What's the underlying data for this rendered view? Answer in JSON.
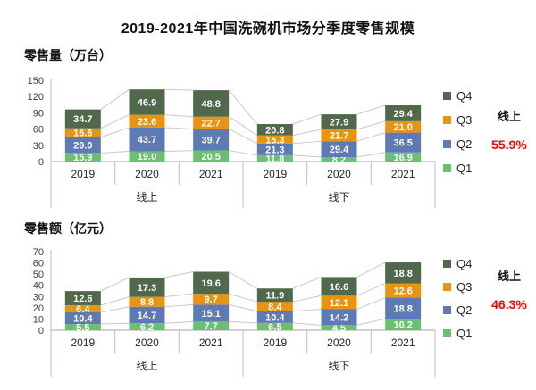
{
  "title": "2019-2021年中国洗碗机市场分季度零售规模",
  "colors": {
    "Q1": "#69c06d",
    "Q2": "#5d7ab5",
    "Q3": "#e89410",
    "Q4": "#4f694a",
    "connector": "#c9c9c9",
    "axis_line": "#bfbfbf",
    "baseline": "#a6a6a6",
    "tick_text": "#404040",
    "category_text": "#262626",
    "value_text": "#ffffff",
    "red": "#ff0000"
  },
  "chart_data": [
    {
      "type": "bar",
      "stacked": true,
      "section_label": "零售量（万台）",
      "unit": "万台",
      "y_max": 150,
      "y_ticks": [
        150,
        120,
        90,
        60,
        30,
        0
      ],
      "categories": [
        "2019",
        "2020",
        "2021",
        "2019",
        "2020",
        "2021"
      ],
      "group_labels": [
        "线上",
        "线下"
      ],
      "series": [
        {
          "name": "Q1",
          "values": [
            15.9,
            19.0,
            20.5,
            11.8,
            8.2,
            16.9
          ]
        },
        {
          "name": "Q2",
          "values": [
            29.0,
            43.7,
            39.7,
            21.3,
            29.4,
            36.5
          ]
        },
        {
          "name": "Q3",
          "values": [
            16.6,
            23.6,
            22.7,
            15.3,
            21.7,
            21.0
          ]
        },
        {
          "name": "Q4",
          "values": [
            34.7,
            46.9,
            48.8,
            20.8,
            27.9,
            29.4
          ]
        }
      ],
      "legend": [
        "Q4",
        "Q3",
        "Q2",
        "Q1"
      ],
      "annotation": {
        "label": "线上",
        "value": "55.9%"
      }
    },
    {
      "type": "bar",
      "stacked": true,
      "section_label": "零售额（亿元）",
      "unit": "亿元",
      "y_max": 70,
      "y_ticks": [
        70,
        60,
        50,
        40,
        30,
        20,
        10,
        0
      ],
      "categories": [
        "2019",
        "2020",
        "2021",
        "2019",
        "2020",
        "2021"
      ],
      "group_labels": [
        "线上",
        "线下"
      ],
      "series": [
        {
          "name": "Q1",
          "values": [
            5.5,
            6.2,
            7.7,
            6.5,
            4.5,
            10.2
          ]
        },
        {
          "name": "Q2",
          "values": [
            10.4,
            14.7,
            15.1,
            10.4,
            14.2,
            18.8
          ]
        },
        {
          "name": "Q3",
          "values": [
            6.4,
            8.8,
            9.7,
            8.4,
            12.1,
            12.6
          ]
        },
        {
          "name": "Q4",
          "values": [
            12.6,
            17.3,
            19.6,
            11.9,
            16.6,
            18.8
          ]
        }
      ],
      "legend": [
        "Q4",
        "Q3",
        "Q2",
        "Q1"
      ],
      "annotation": {
        "label": "线上",
        "value": "46.3%"
      }
    }
  ]
}
